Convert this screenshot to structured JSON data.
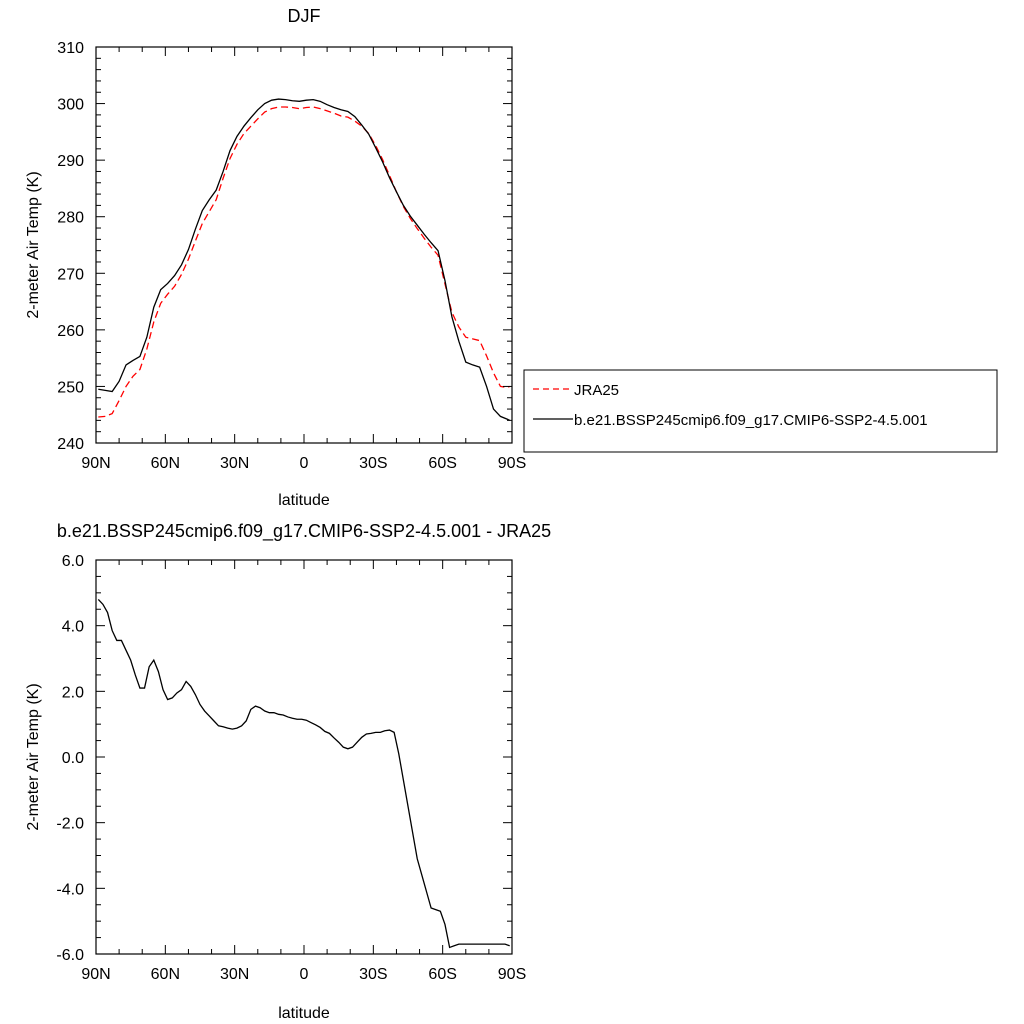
{
  "chart_data": [
    {
      "type": "line",
      "title": "DJF",
      "xlabel": "latitude",
      "ylabel": "2-meter Air Temp (K)",
      "xlim": [
        -90,
        90
      ],
      "ylim": [
        240,
        310
      ],
      "x_ticks": [
        -90,
        -60,
        -30,
        0,
        30,
        60,
        90
      ],
      "x_tick_labels": [
        "90N",
        "60N",
        "30N",
        "0",
        "30S",
        "60S",
        "90S"
      ],
      "y_ticks": [
        240,
        250,
        260,
        270,
        280,
        290,
        300,
        310
      ],
      "y_tick_labels": [
        "240",
        "250",
        "260",
        "270",
        "280",
        "290",
        "300",
        "310"
      ],
      "grid": false,
      "legend_position": "right",
      "series": [
        {
          "name": "JRA25",
          "color": "#ff0000",
          "dash": "dashed",
          "x": [
            -89,
            -86,
            -83,
            -80,
            -77,
            -74,
            -71,
            -68,
            -65,
            -62,
            -59,
            -56,
            -53,
            -50,
            -47,
            -44,
            -41,
            -38,
            -35,
            -32,
            -29,
            -26,
            -23,
            -20,
            -17,
            -14,
            -11,
            -8,
            -5,
            -2,
            1,
            4,
            7,
            10,
            13,
            16,
            19,
            22,
            25,
            28,
            31,
            34,
            37,
            40,
            43,
            46,
            49,
            52,
            55,
            58,
            61,
            64,
            67,
            70,
            73,
            76,
            79,
            82,
            85,
            88,
            89
          ],
          "y": [
            244.6,
            244.7,
            245.2,
            247.5,
            250.0,
            251.8,
            253.0,
            256.6,
            261.4,
            264.7,
            266.3,
            267.7,
            269.8,
            272.5,
            275.7,
            278.8,
            280.9,
            283.0,
            286.8,
            290.3,
            292.8,
            294.7,
            296.0,
            297.3,
            298.5,
            299.1,
            299.4,
            299.4,
            299.3,
            299.1,
            299.3,
            299.4,
            299.1,
            298.7,
            298.3,
            297.8,
            297.6,
            296.9,
            296.0,
            294.7,
            292.6,
            290.1,
            287.3,
            284.4,
            281.8,
            279.7,
            277.9,
            276.2,
            274.6,
            273.2,
            268.1,
            263.1,
            260.5,
            258.7,
            258.4,
            258.1,
            255.4,
            252.4,
            250.0,
            249.8,
            250.0
          ]
        },
        {
          "name": "b.e21.BSSP245cmip6.f09_g17.CMIP6-SSP2-4.5.001",
          "color": "#000000",
          "dash": "solid",
          "x": [
            -89,
            -86,
            -83,
            -80,
            -77,
            -74,
            -71,
            -68,
            -65,
            -62,
            -59,
            -56,
            -53,
            -50,
            -47,
            -44,
            -41,
            -38,
            -35,
            -32,
            -29,
            -26,
            -23,
            -20,
            -17,
            -14,
            -11,
            -8,
            -5,
            -2,
            1,
            4,
            7,
            10,
            13,
            16,
            19,
            22,
            25,
            28,
            31,
            34,
            37,
            40,
            43,
            46,
            49,
            52,
            55,
            58,
            61,
            64,
            67,
            70,
            73,
            76,
            79,
            82,
            85,
            88,
            89
          ],
          "y": [
            249.5,
            249.3,
            249.1,
            250.9,
            253.8,
            254.6,
            255.3,
            258.7,
            264.0,
            267.1,
            268.2,
            269.6,
            271.5,
            274.2,
            277.8,
            281.1,
            283.0,
            284.7,
            288.0,
            291.7,
            294.2,
            296.0,
            297.5,
            298.9,
            300.0,
            300.6,
            300.8,
            300.7,
            300.5,
            300.4,
            300.6,
            300.7,
            300.4,
            299.8,
            299.3,
            298.9,
            298.6,
            297.7,
            296.2,
            294.6,
            292.2,
            289.7,
            286.9,
            284.4,
            282.0,
            280.1,
            278.5,
            276.9,
            275.4,
            274.0,
            268.7,
            262.3,
            258.0,
            254.3,
            253.8,
            253.4,
            250.0,
            246.0,
            244.7,
            244.2,
            244.0
          ]
        }
      ]
    },
    {
      "type": "line",
      "title": "b.e21.BSSP245cmip6.f09_g17.CMIP6-SSP2-4.5.001 - JRA25",
      "xlabel": "latitude",
      "ylabel": "2-meter Air Temp (K)",
      "xlim": [
        -90,
        90
      ],
      "ylim": [
        -6,
        6
      ],
      "x_ticks": [
        -90,
        -60,
        -30,
        0,
        30,
        60,
        90
      ],
      "x_tick_labels": [
        "90N",
        "60N",
        "30N",
        "0",
        "30S",
        "60S",
        "90S"
      ],
      "y_ticks": [
        -6,
        -4,
        -2,
        0,
        2,
        4,
        6
      ],
      "y_tick_labels": [
        "-6.0",
        "-4.0",
        "-2.0",
        "0.0",
        "2.0",
        "4.0",
        "6.0"
      ],
      "grid": false,
      "series": [
        {
          "color": "#000000",
          "dash": "solid",
          "x": [
            -89,
            -87,
            -85,
            -83,
            -81,
            -79,
            -77,
            -75,
            -73,
            -71,
            -69,
            -67,
            -65,
            -63,
            -61,
            -59,
            -57,
            -55,
            -53,
            -51,
            -49,
            -47,
            -45,
            -43,
            -41,
            -39,
            -37,
            -35,
            -33,
            -31,
            -29,
            -27,
            -25,
            -23,
            -21,
            -19,
            -17,
            -15,
            -13,
            -11,
            -9,
            -7,
            -5,
            -3,
            -1,
            1,
            3,
            5,
            7,
            9,
            11,
            13,
            15,
            17,
            19,
            21,
            23,
            25,
            27,
            29,
            31,
            33,
            35,
            37,
            39,
            41,
            43,
            45,
            47,
            49,
            51,
            53,
            55,
            57,
            59,
            61,
            63,
            65,
            67,
            69,
            71,
            73,
            75,
            77,
            79,
            81,
            83,
            85,
            87,
            89
          ],
          "y": [
            4.8,
            4.65,
            4.4,
            3.85,
            3.55,
            3.55,
            3.25,
            2.95,
            2.5,
            2.1,
            2.1,
            2.75,
            2.95,
            2.6,
            2.05,
            1.75,
            1.8,
            1.95,
            2.05,
            2.3,
            2.15,
            1.9,
            1.6,
            1.4,
            1.25,
            1.1,
            0.95,
            0.92,
            0.88,
            0.85,
            0.88,
            0.95,
            1.1,
            1.45,
            1.55,
            1.5,
            1.4,
            1.35,
            1.35,
            1.3,
            1.28,
            1.22,
            1.18,
            1.15,
            1.15,
            1.12,
            1.05,
            0.98,
            0.9,
            0.78,
            0.72,
            0.58,
            0.45,
            0.3,
            0.25,
            0.3,
            0.45,
            0.6,
            0.7,
            0.72,
            0.75,
            0.75,
            0.8,
            0.82,
            0.75,
            0.1,
            -0.7,
            -1.5,
            -2.3,
            -3.1,
            -3.6,
            -4.1,
            -4.6,
            -4.65,
            -4.7,
            -5.1,
            -5.8,
            -5.75,
            -5.7,
            -5.7,
            -5.7,
            -5.7,
            -5.7,
            -5.7,
            -5.7,
            -5.7,
            -5.7,
            -5.7,
            -5.7,
            -5.75
          ]
        }
      ]
    }
  ]
}
